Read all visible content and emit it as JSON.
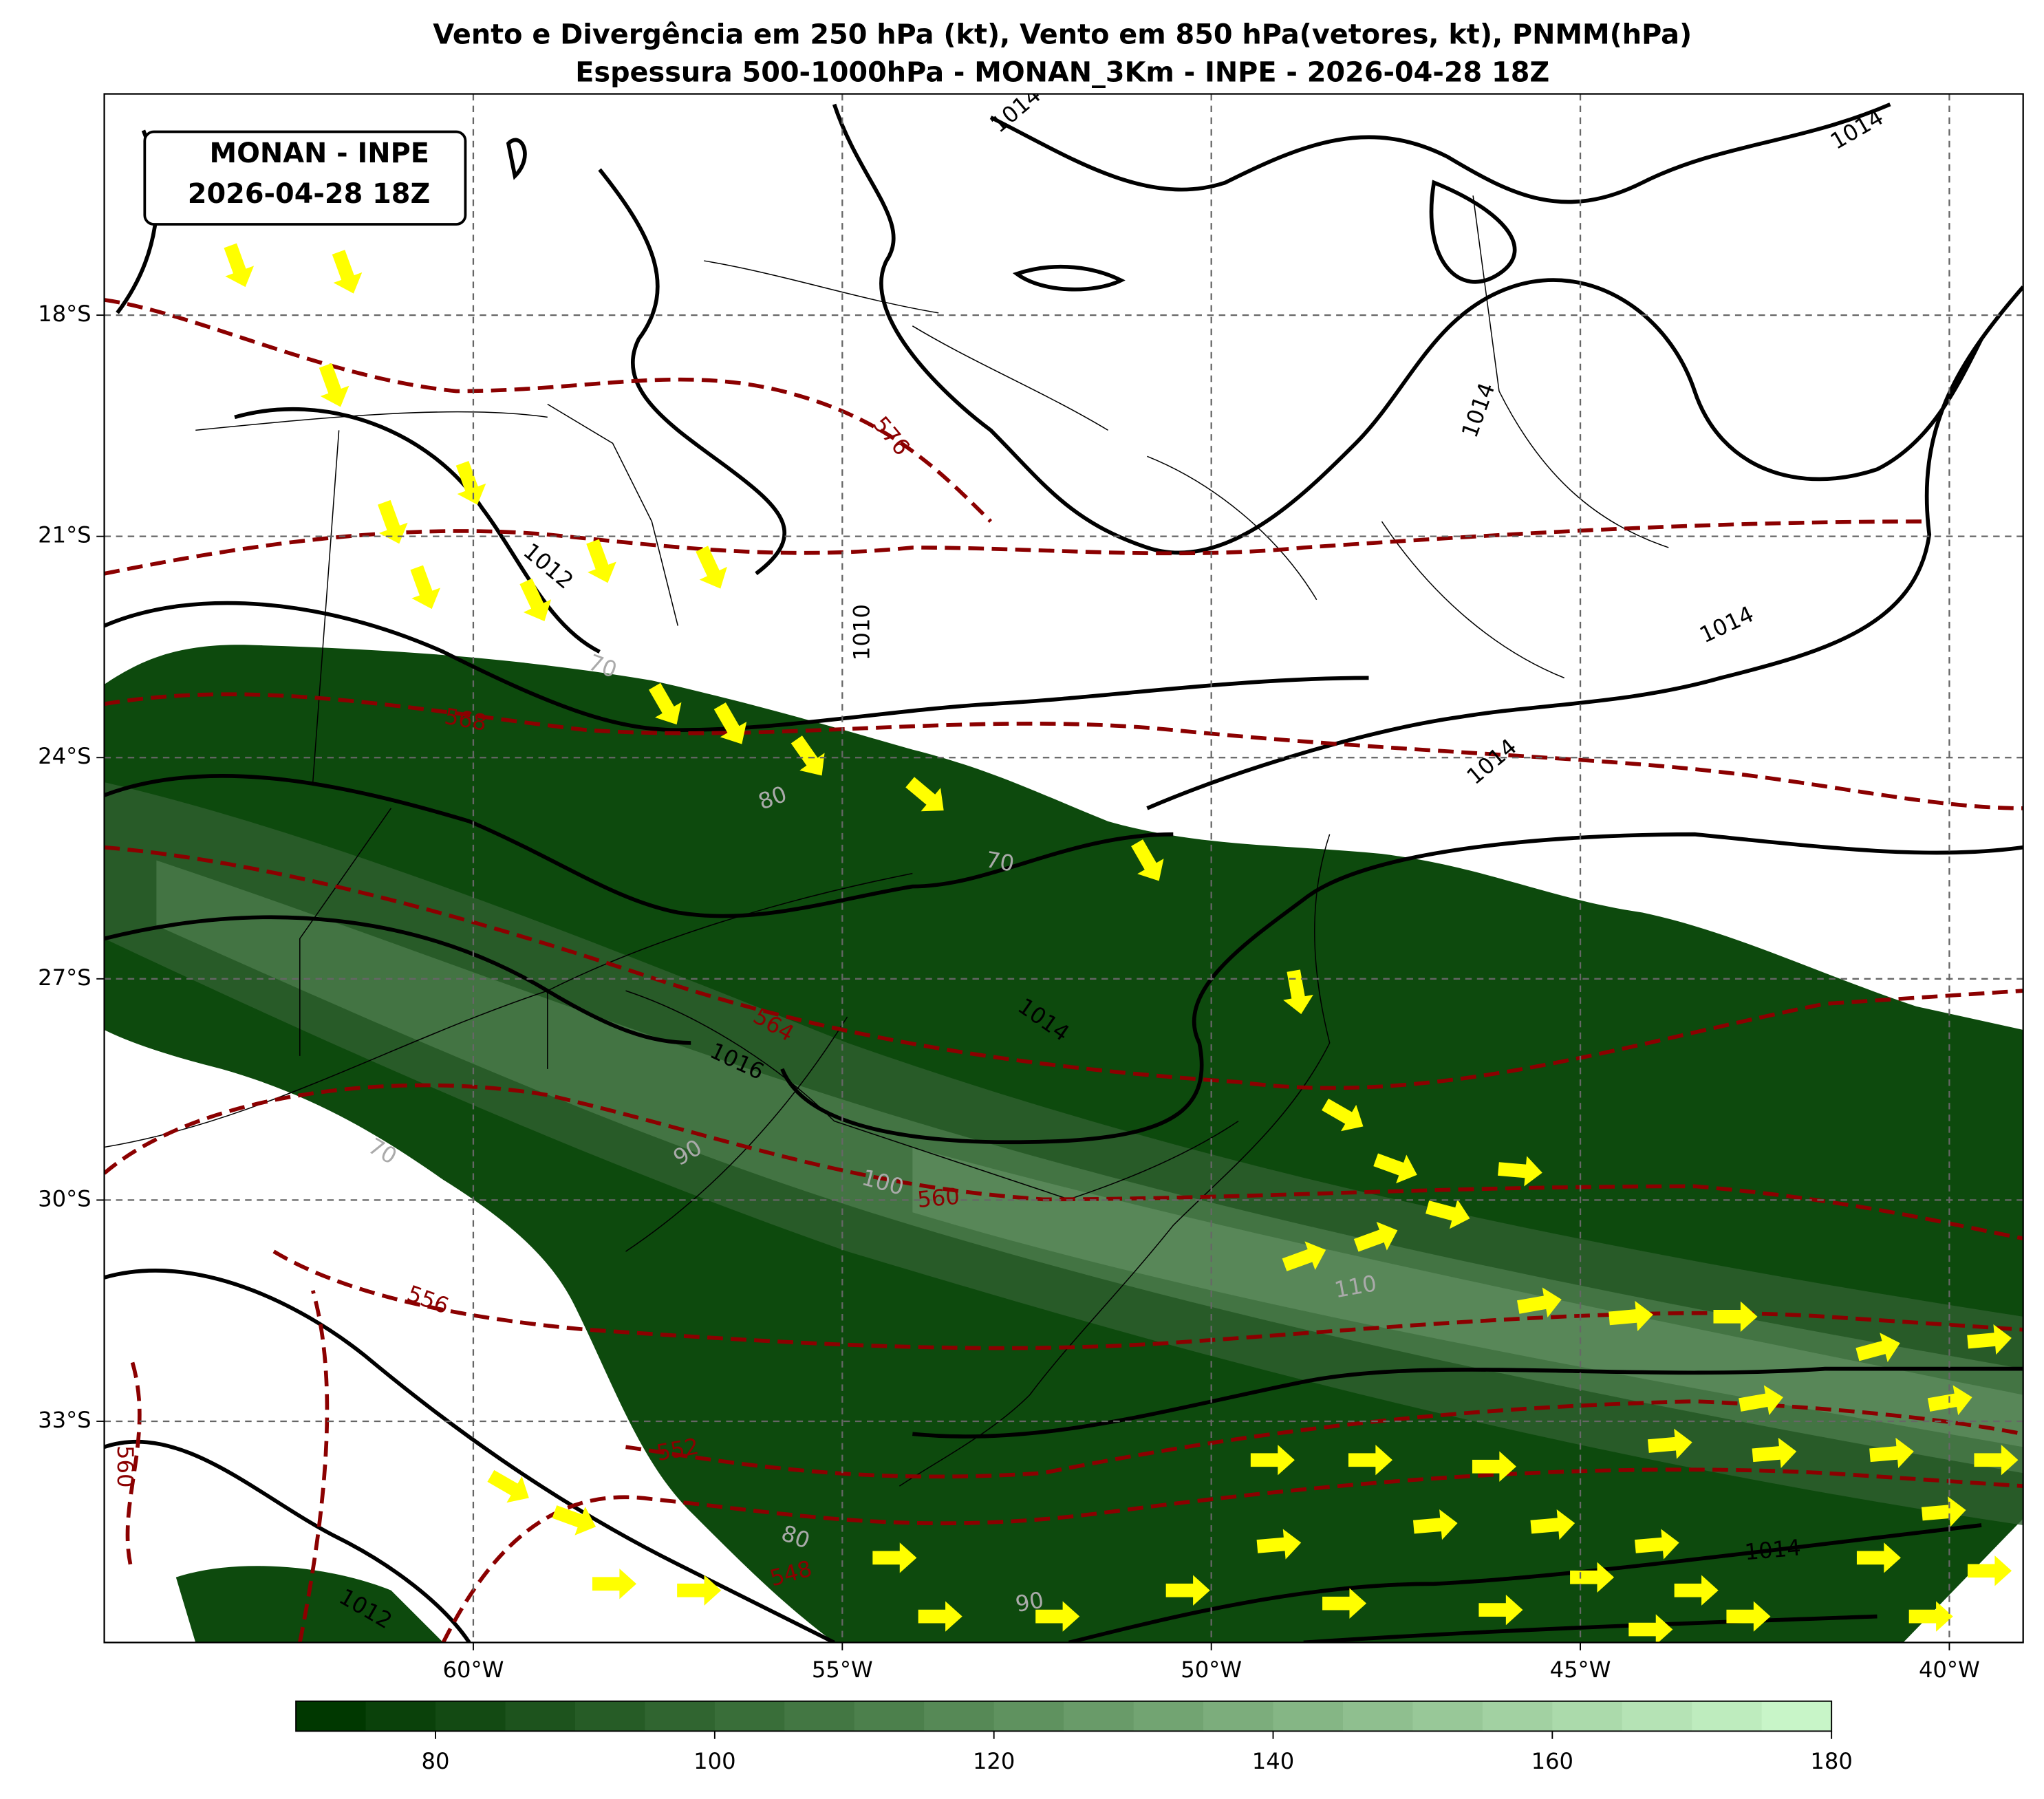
{
  "title": [
    "Vento e Divergência em 250 hPa (kt), Vento em 850 hPa(vetores, kt), PNMM(hPa)",
    "Espessura 500-1000hPa - MONAN_3Km - INPE - 2026-04-28 18Z"
  ],
  "info_box": [
    "MONAN - INPE",
    "2026-04-28 18Z"
  ],
  "map": {
    "lon_range": [
      -65,
      -39
    ],
    "lat_range": [
      -36,
      -15
    ],
    "lon_ticks": [
      {
        "value": -60,
        "label": "60°W"
      },
      {
        "value": -55,
        "label": "55°W"
      },
      {
        "value": -50,
        "label": "50°W"
      },
      {
        "value": -45,
        "label": "45°W"
      },
      {
        "value": -40,
        "label": "40°W"
      }
    ],
    "lat_ticks": [
      {
        "value": -18,
        "label": "18°S"
      },
      {
        "value": -21,
        "label": "21°S"
      },
      {
        "value": -24,
        "label": "24°S"
      },
      {
        "value": -27,
        "label": "27°S"
      },
      {
        "value": -30,
        "label": "30°S"
      },
      {
        "value": -33,
        "label": "33°S"
      }
    ],
    "contour_labels": [
      "1014",
      "1014",
      "1014",
      "1014",
      "1014",
      "1014",
      "1014",
      "1012",
      "1012",
      "1010",
      "1016",
      "576",
      "568",
      "564",
      "560",
      "560",
      "556",
      "552",
      "548",
      "70",
      "80",
      "70",
      "70",
      "90",
      "100",
      "110",
      "80",
      "90"
    ]
  },
  "colorbar": {
    "range": [
      70,
      180
    ],
    "ticks": [
      80,
      100,
      120,
      140,
      160,
      180
    ],
    "colors": [
      "#003800",
      "#c8f5c8"
    ],
    "step": 5
  }
}
